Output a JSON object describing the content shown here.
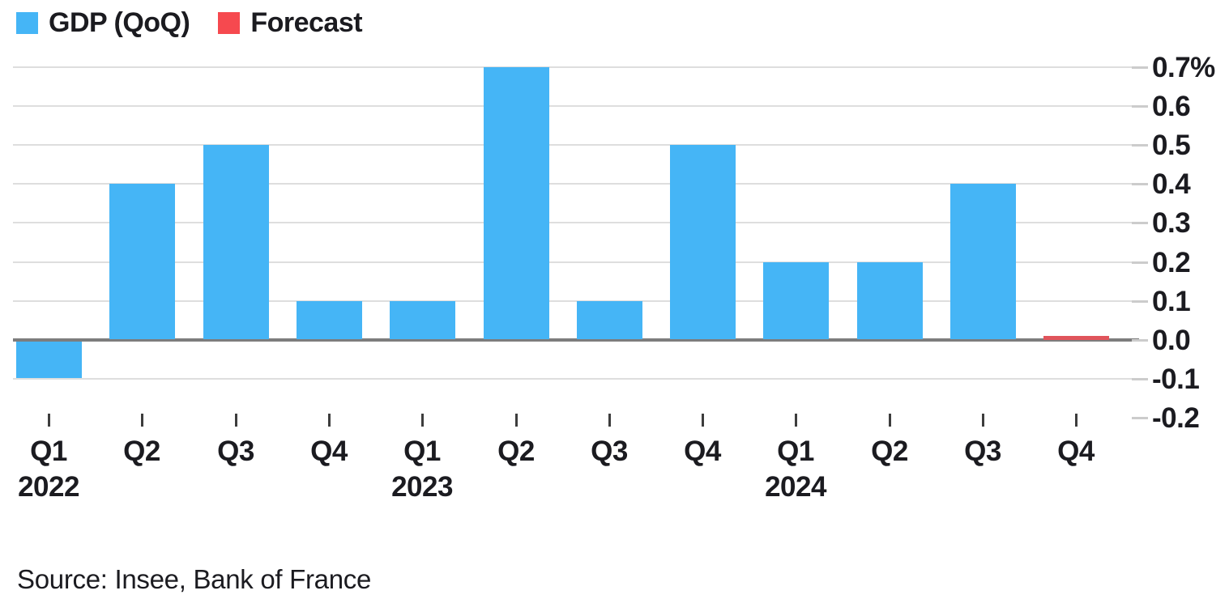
{
  "legend": {
    "gdp_label": "GDP (QoQ)",
    "forecast_label": "Forecast"
  },
  "source": "Source: Insee, Bank of France",
  "colors": {
    "bar_blue": "#45b5f6",
    "forecast_red": "#f6494f",
    "forecast_bar_red": "#e0545b",
    "gridline": "#dedede",
    "zero_line": "#7d7d7d",
    "tick_stub": "#cccccc",
    "text": "#1b1b20"
  },
  "chart_data": {
    "type": "bar",
    "title": "",
    "xlabel": "",
    "ylabel": "",
    "unit": "%",
    "categories": [
      "Q1 2022",
      "Q2 2022",
      "Q3 2022",
      "Q4 2022",
      "Q1 2023",
      "Q2 2023",
      "Q3 2023",
      "Q4 2023",
      "Q1 2024",
      "Q2 2024",
      "Q3 2024",
      "Q4 2024"
    ],
    "x_tick_labels": [
      "Q1",
      "Q2",
      "Q3",
      "Q4",
      "Q1",
      "Q2",
      "Q3",
      "Q4",
      "Q1",
      "Q2",
      "Q3",
      "Q4"
    ],
    "year_labels": [
      {
        "text": "2022",
        "index": 0
      },
      {
        "text": "2023",
        "index": 4
      },
      {
        "text": "2024",
        "index": 8
      }
    ],
    "series": [
      {
        "name": "GDP (QoQ)",
        "color": "#45b5f6",
        "values": [
          -0.1,
          0.4,
          0.5,
          0.1,
          0.1,
          0.7,
          0.1,
          0.5,
          0.2,
          0.2,
          0.4,
          null
        ]
      },
      {
        "name": "Forecast",
        "color": "#e0545b",
        "values": [
          null,
          null,
          null,
          null,
          null,
          null,
          null,
          null,
          null,
          null,
          null,
          0.0
        ]
      }
    ],
    "y_ticks": [
      {
        "label": "0.7%",
        "value": 0.7
      },
      {
        "label": "0.6",
        "value": 0.6
      },
      {
        "label": "0.5",
        "value": 0.5
      },
      {
        "label": "0.4",
        "value": 0.4
      },
      {
        "label": "0.3",
        "value": 0.3
      },
      {
        "label": "0.2",
        "value": 0.2
      },
      {
        "label": "0.1",
        "value": 0.1
      },
      {
        "label": "0.0",
        "value": 0.0
      },
      {
        "label": "-0.1",
        "value": -0.1
      },
      {
        "label": "-0.2",
        "value": -0.2
      }
    ],
    "ylim": [
      -0.2,
      0.7
    ],
    "grid": "horizontal",
    "legend_position": "top-left"
  }
}
